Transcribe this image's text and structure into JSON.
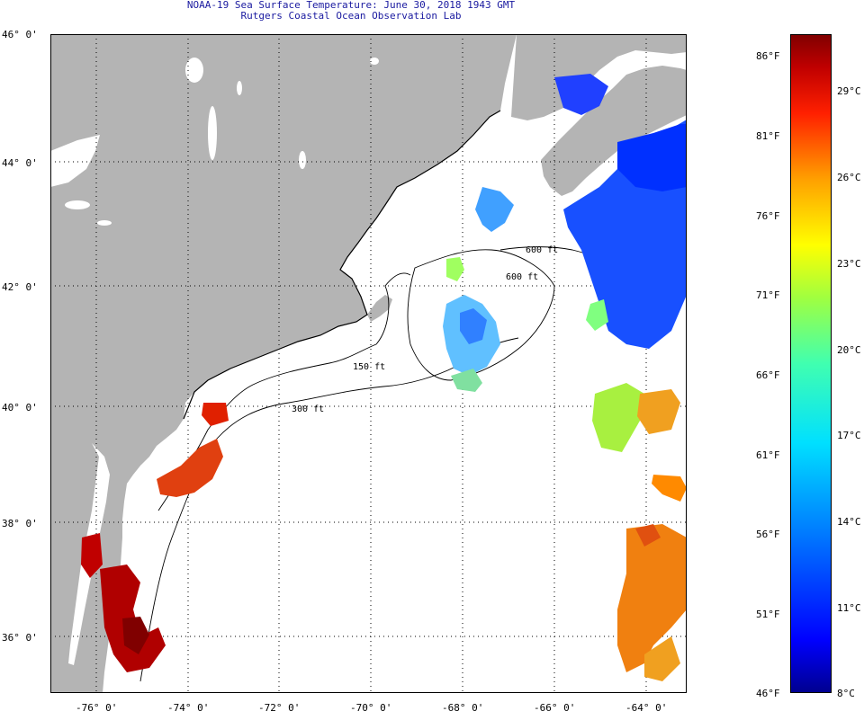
{
  "title": {
    "line1": "NOAA-19 Sea Surface Temperature:  June 30, 2018 1943 GMT",
    "line2": "Rutgers Coastal Ocean Observation Lab"
  },
  "axes": {
    "lat_ticks": [
      "46° 0'",
      "44° 0'",
      "42° 0'",
      "40° 0'",
      "38° 0'",
      "36° 0'"
    ],
    "lon_ticks": [
      "-76° 0'",
      "-74° 0'",
      "-72° 0'",
      "-70° 0'",
      "-68° 0'",
      "-66° 0'",
      "-64° 0'"
    ]
  },
  "contours": {
    "c150": "150 ft",
    "c300": "300 ft",
    "c600a": "600 ft",
    "c600b": "600 ft"
  },
  "colorbar": {
    "fahrenheit": [
      "86°F",
      "81°F",
      "76°F",
      "71°F",
      "66°F",
      "61°F",
      "56°F",
      "51°F",
      "46°F"
    ],
    "celsius": [
      "29°C",
      "26°C",
      "23°C",
      "20°C",
      "17°C",
      "14°C",
      "11°C",
      "8°C"
    ],
    "stops": [
      "#00008f",
      "#0000ff",
      "#0080ff",
      "#00e0ff",
      "#40ffb0",
      "#a0ff40",
      "#ffff00",
      "#ffa000",
      "#ff2000",
      "#c00000",
      "#800000"
    ]
  },
  "colors": {
    "land": "#b4b4b4",
    "ocean": "#ffffff"
  }
}
